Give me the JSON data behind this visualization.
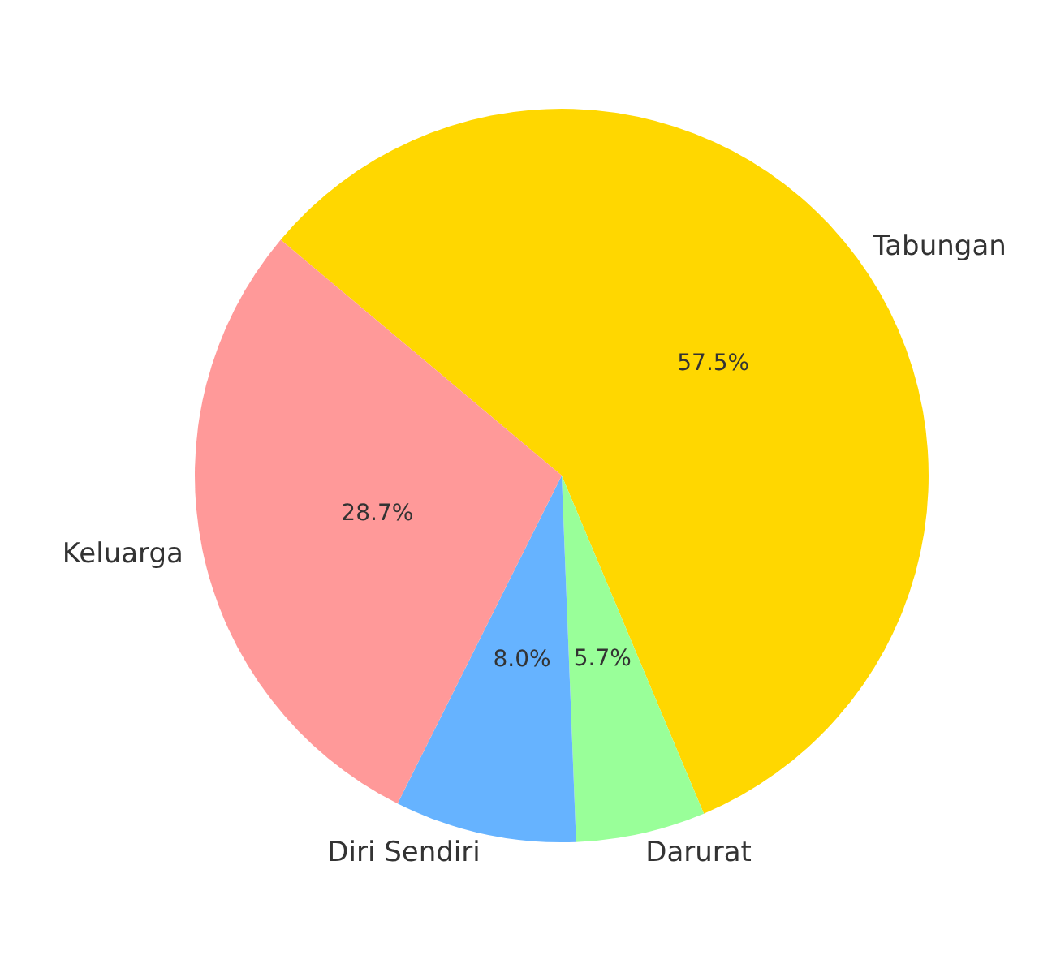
{
  "chart_data": {
    "type": "pie",
    "categories": [
      "Tabungan",
      "Darurat",
      "Diri Sendiri",
      "Keluarga"
    ],
    "values": [
      57.5,
      5.7,
      8.0,
      28.7
    ],
    "colors": [
      "#ffd700",
      "#99ff99",
      "#66b3ff",
      "#ff9999"
    ],
    "value_labels": [
      "57.5%",
      "5.7%",
      "8.0%",
      "28.7%"
    ]
  }
}
